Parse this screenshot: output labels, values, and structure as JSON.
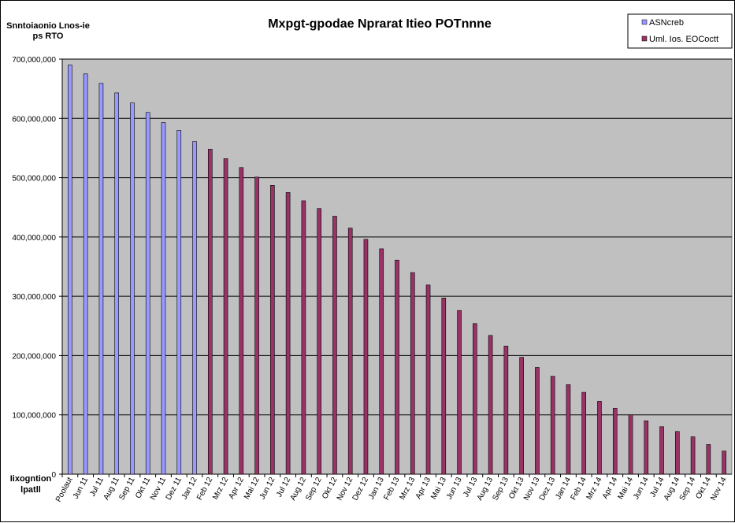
{
  "chart_data": {
    "type": "bar",
    "title": "Mxpgt-gpodae Nprarat Itieo POTnnne",
    "ylabel_line1": "Snntoiaonio Lnos-ie",
    "ylabel_line2": "ps RTO",
    "xlabel_line1": "Iixogntion",
    "xlabel_line2": "lpatll",
    "ylim": [
      0,
      700000000
    ],
    "yticks": [
      "0",
      "100,000,000",
      "200,000,000",
      "300,000,000",
      "400,000,000",
      "500,000,000",
      "600,000,000",
      "700,000,000"
    ],
    "grid": true,
    "legend_position": "top-right",
    "plot_background": "#c0c0c0",
    "categories": [
      "Poolaut",
      "Jun 11",
      "Jul 11",
      "Aug 11",
      "Sep 11",
      "Okt 11",
      "Nov 11",
      "Dez 11",
      "Jan 12",
      "Feb 12",
      "Mrz 12",
      "Apr 12",
      "Mai 12",
      "Jun 12",
      "Jul 12",
      "Aug 12",
      "Sep 12",
      "Okt 12",
      "Nov 12",
      "Dez 12",
      "Jan 13",
      "Feb 13",
      "Mrz 13",
      "Apr 13",
      "Mai 13",
      "Jun 13",
      "Jul 13",
      "Aug 13",
      "Sep 13",
      "Okt 13",
      "Nov 13",
      "Dez 13",
      "Jan 14",
      "Feb 14",
      "Mrz 14",
      "Apr 14",
      "Mai 14",
      "Jun 14",
      "Jul 14",
      "Aug 14",
      "Sep 14",
      "Okt 14",
      "Nov 14"
    ],
    "series": [
      {
        "name": "ASNcreb",
        "color": "#9999ff",
        "values": [
          690000000,
          675000000,
          659000000,
          643000000,
          626000000,
          610000000,
          593000000,
          580000000,
          561000000,
          null,
          null,
          null,
          null,
          null,
          null,
          null,
          null,
          null,
          null,
          null,
          null,
          null,
          null,
          null,
          null,
          null,
          null,
          null,
          null,
          null,
          null,
          null,
          null,
          null,
          null,
          null,
          null,
          null,
          null,
          null,
          null,
          null,
          null
        ]
      },
      {
        "name": "Uml. Ios. EOCoctt",
        "color": "#993366",
        "values": [
          null,
          null,
          null,
          null,
          null,
          null,
          null,
          null,
          null,
          548000000,
          532000000,
          517000000,
          501000000,
          487000000,
          475000000,
          461000000,
          448000000,
          435000000,
          415000000,
          396000000,
          380000000,
          361000000,
          340000000,
          319000000,
          297000000,
          276000000,
          254000000,
          234000000,
          216000000,
          197000000,
          180000000,
          165000000,
          151000000,
          138000000,
          123000000,
          111000000,
          100000000,
          90000000,
          80000000,
          72000000,
          63000000,
          50000000,
          39000000
        ]
      }
    ]
  }
}
